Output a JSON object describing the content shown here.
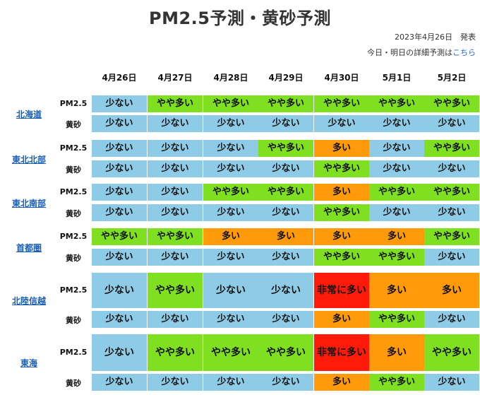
{
  "page": {
    "title": "PM2.5予測・黄砂予測",
    "announce": "2023年4月26日　発表",
    "detail_prefix": "今日・明日の詳細予測は",
    "detail_link": "こちら"
  },
  "dates": [
    "4月26日",
    "4月27日",
    "4月28日",
    "4月29日",
    "4月30日",
    "5月1日",
    "5月2日"
  ],
  "level_colors": {
    "少ない": "#8ecbe6",
    "やや多い": "#7ee020",
    "多い": "#ff9a0a",
    "非常に多い": "#ff1a0a"
  },
  "row_labels": {
    "pm25": "PM2.5",
    "dust": "黄砂"
  },
  "regions": [
    {
      "name": "北海道",
      "pm25": [
        "少ない",
        "やや多い",
        "やや多い",
        "やや多い",
        "やや多い",
        "やや多い",
        "やや多い"
      ],
      "dust": [
        "少ない",
        "少ない",
        "少ない",
        "少ない",
        "少ない",
        "少ない",
        "少ない"
      ]
    },
    {
      "name": "東北北部",
      "pm25": [
        "少ない",
        "少ない",
        "少ない",
        "やや多い",
        "多い",
        "少ない",
        "やや多い"
      ],
      "dust": [
        "少ない",
        "少ない",
        "少ない",
        "少ない",
        "やや多い",
        "少ない",
        "少ない"
      ]
    },
    {
      "name": "東北南部",
      "pm25": [
        "少ない",
        "少ない",
        "やや多い",
        "やや多い",
        "多い",
        "やや多い",
        "やや多い"
      ],
      "dust": [
        "少ない",
        "少ない",
        "少ない",
        "少ない",
        "やや多い",
        "少ない",
        "少ない"
      ]
    },
    {
      "name": "首都圏",
      "pm25": [
        "やや多い",
        "やや多い",
        "多い",
        "多い",
        "多い",
        "多い",
        "やや多い"
      ],
      "dust": [
        "少ない",
        "少ない",
        "少ない",
        "少ない",
        "やや多い",
        "やや多い",
        "少ない"
      ]
    },
    {
      "name": "北陸信越",
      "pm25": [
        "少ない",
        "やや多い",
        "少ない",
        "少ない",
        "非常に多い",
        "多い",
        "多い"
      ],
      "dust": [
        "少ない",
        "少ない",
        "少ない",
        "少ない",
        "多い",
        "やや多い",
        "少ない"
      ]
    },
    {
      "name": "東海",
      "pm25": [
        "少ない",
        "やや多い",
        "やや多い",
        "やや多い",
        "非常に多い",
        "多い",
        "やや多い"
      ],
      "dust": [
        "少ない",
        "少ない",
        "少ない",
        "少ない",
        "多い",
        "やや多い",
        "少ない"
      ]
    }
  ]
}
